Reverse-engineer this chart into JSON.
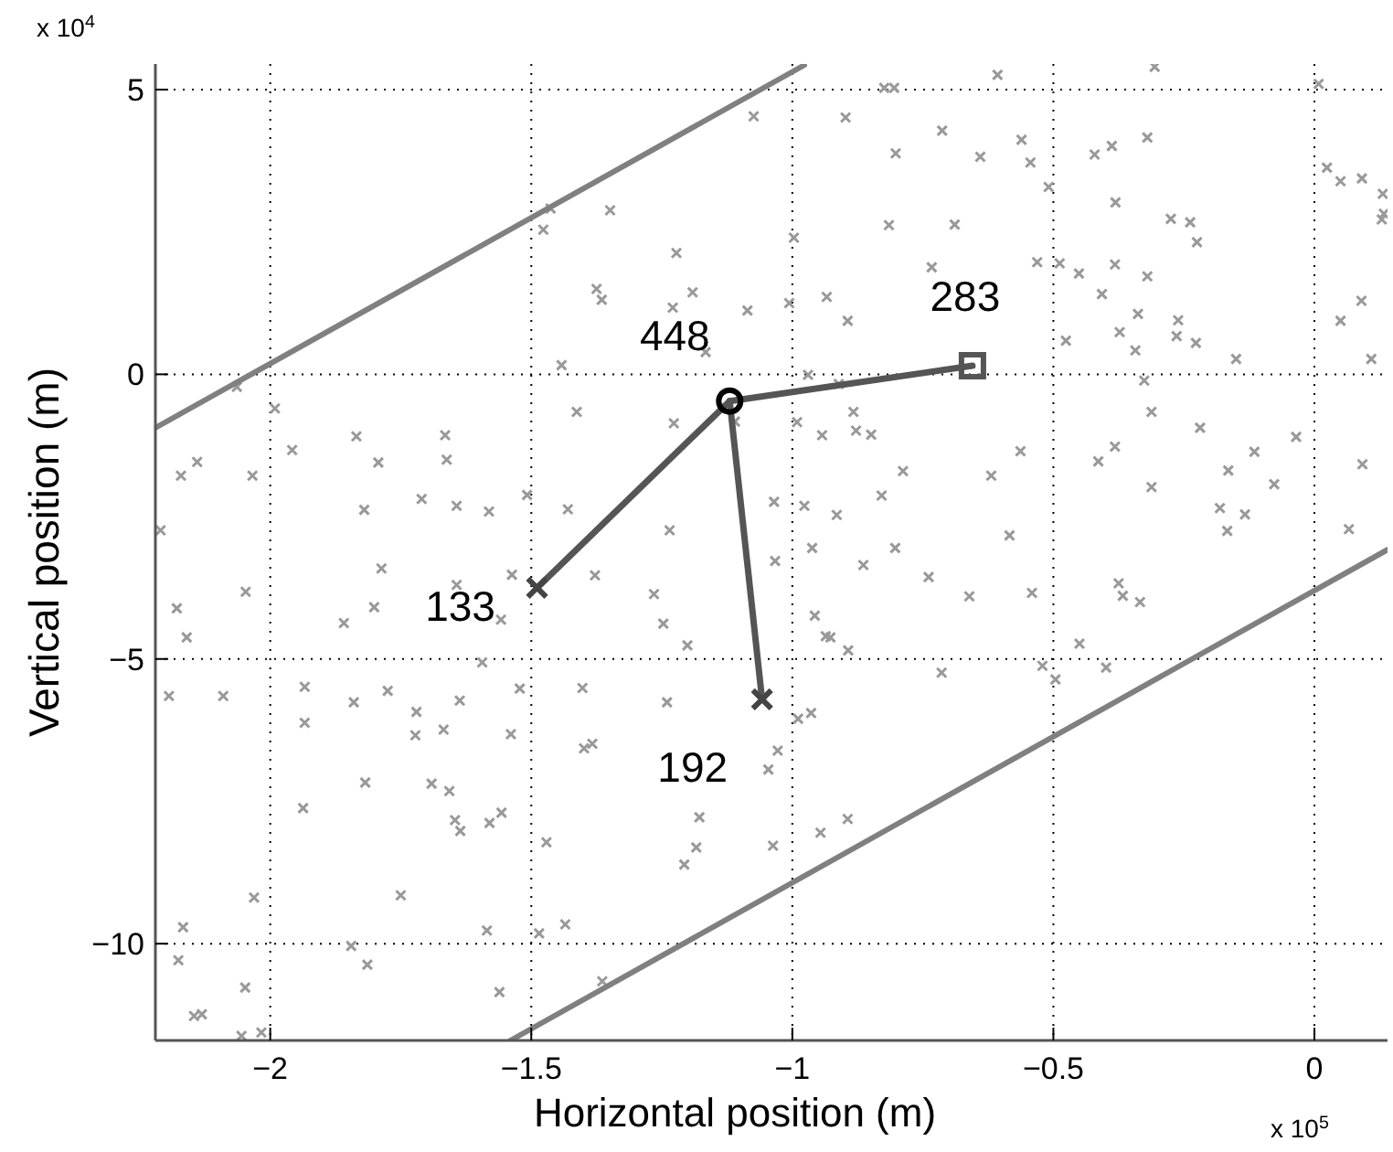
{
  "chart_data": {
    "type": "scatter",
    "xlabel": "Horizontal position (m)",
    "ylabel": "Vertical position (m)",
    "xlim": [
      -2.22,
      0.14
    ],
    "xticks": [
      -2,
      -1.5,
      -1,
      -0.5,
      0
    ],
    "ylim": [
      -11.7,
      5.45
    ],
    "yticks": [
      -10,
      -5,
      0,
      5
    ],
    "grid": true,
    "annotations": [
      {
        "text": "448",
        "x": -1.12,
        "y": -0.47
      },
      {
        "text": "283",
        "x": -0.655,
        "y": 0.15
      },
      {
        "text": "133",
        "x": -1.489,
        "y": -3.75
      },
      {
        "text": "192",
        "x": -1.058,
        "y": -5.71
      },
      "x 10$^{4}$",
      "x 10$^{5}$"
    ],
    "series": [
      {
        "color": "#999999",
        "marker": "cross",
        "x": [
          -1.477,
          -2.064,
          -1.991,
          -1.958,
          -2.171,
          -2.14,
          -2.034,
          -1.835,
          -1.793,
          -1.665,
          -1.662,
          -1.82,
          -1.71,
          -1.643,
          -1.581,
          -1.508,
          -2.21,
          -1.463,
          -1.349,
          -1.074,
          -1.222,
          -1.375,
          -1.365,
          -1.191,
          -1.229,
          -1.086,
          -1.166,
          -1.442,
          -1.413,
          -1.227,
          -1.11,
          -1.43,
          -1.235,
          -1.035,
          -0.997,
          -1.006,
          -0.898,
          -0.824,
          -0.805,
          -0.713,
          -0.802,
          -0.815,
          -0.689,
          -0.733,
          -0.934,
          -0.894,
          -0.97,
          -0.911,
          -0.991,
          -0.943,
          -0.883,
          -0.878,
          -0.849,
          -0.788,
          -0.977,
          -0.915,
          -0.829,
          -0.962,
          -0.803,
          -0.607,
          -0.64,
          -0.561,
          -0.544,
          -0.509,
          -0.531,
          -0.306,
          -0.421,
          -0.388,
          -0.32,
          -0.381,
          -0.275,
          -0.238,
          -0.225,
          -0.488,
          -0.451,
          -0.382,
          -0.32,
          -0.407,
          -0.338,
          -0.373,
          -0.343,
          -0.261,
          -0.264,
          -0.227,
          -0.15,
          -0.476,
          -0.326,
          -0.312,
          -0.219,
          -0.035,
          -0.115,
          -0.165,
          -0.077,
          -0.181,
          -0.133,
          -0.167,
          -0.414,
          -0.382,
          -0.312,
          -0.563,
          -0.619,
          -0.584,
          0.008,
          0.024,
          0.05,
          0.091,
          0.131,
          0.133,
          0.129,
          0.05,
          0.09,
          0.109,
          0.092,
          0.066,
          -1.787,
          -2.047,
          -2.179,
          -2.16,
          -1.859,
          -1.801,
          -1.643,
          -1.537,
          -1.558,
          -1.594,
          -2.194,
          -2.09,
          -1.934,
          -1.934,
          -1.84,
          -1.775,
          -1.72,
          -1.722,
          -1.668,
          -1.637,
          -1.522,
          -1.539,
          -1.818,
          -1.691,
          -1.657,
          -1.646,
          -1.636,
          -1.58,
          -1.557,
          -1.937,
          -1.471,
          -1.75,
          -2.031,
          -2.167,
          -2.176,
          -1.845,
          -1.814,
          -1.585,
          -1.485,
          -2.048,
          -1.561,
          -2.146,
          -2.131,
          -2.055,
          -2.017,
          -1.378,
          -1.265,
          -1.247,
          -1.201,
          -1.402,
          -1.24,
          -1.399,
          -1.383,
          -1.033,
          -0.864,
          -0.739,
          -0.957,
          -0.936,
          -0.927,
          -0.893,
          -0.714,
          -0.989,
          -0.964,
          -1.028,
          -1.046,
          -1.178,
          -1.184,
          -1.207,
          -1.037,
          -0.946,
          -0.894,
          -1.435,
          -1.364,
          -0.661,
          -0.541,
          -0.375,
          -0.367,
          -0.334,
          -0.45,
          -0.521,
          -0.496,
          -0.399
        ],
        "values": [
          2.54,
          -0.22,
          -0.6,
          -1.33,
          -1.78,
          -1.54,
          -1.78,
          -1.09,
          -1.55,
          -1.07,
          -1.5,
          -2.38,
          -2.19,
          -2.31,
          -2.41,
          -2.12,
          -2.74,
          2.91,
          2.88,
          4.53,
          2.13,
          1.5,
          1.31,
          1.44,
          1.17,
          1.12,
          0.39,
          0.16,
          -0.66,
          -0.86,
          -0.83,
          -2.37,
          -2.74,
          -2.24,
          2.4,
          1.25,
          4.51,
          5.03,
          5.03,
          4.28,
          3.88,
          2.62,
          2.63,
          1.88,
          1.36,
          0.94,
          -0.01,
          -0.17,
          -0.84,
          -1.07,
          -0.66,
          -0.99,
          -1.06,
          -1.7,
          -2.31,
          -2.47,
          -2.13,
          -3.05,
          -3.05,
          5.26,
          3.82,
          4.12,
          3.72,
          3.29,
          1.97,
          5.4,
          3.86,
          4.01,
          4.16,
          3.02,
          2.73,
          2.67,
          2.32,
          1.95,
          1.77,
          1.93,
          1.72,
          1.41,
          1.06,
          0.74,
          0.42,
          0.95,
          0.67,
          0.55,
          0.27,
          0.59,
          -0.11,
          -0.66,
          -0.94,
          -1.1,
          -1.36,
          -1.69,
          -1.93,
          -2.35,
          -2.46,
          -2.75,
          -1.53,
          -1.27,
          -1.98,
          -1.35,
          -1.78,
          -2.83,
          5.1,
          3.63,
          3.39,
          3.44,
          3.17,
          2.82,
          2.72,
          0.94,
          1.29,
          0.27,
          -1.58,
          -2.72,
          -3.41,
          -3.82,
          -4.11,
          -4.62,
          -4.37,
          -4.09,
          -3.7,
          -3.52,
          -4.31,
          -5.06,
          -5.65,
          -5.65,
          -5.49,
          -6.12,
          -5.76,
          -5.56,
          -5.93,
          -6.34,
          -6.24,
          -5.73,
          -5.52,
          -6.32,
          -7.17,
          -7.19,
          -7.32,
          -7.83,
          -8.02,
          -7.88,
          -7.7,
          -7.62,
          -8.22,
          -9.15,
          -9.19,
          -9.71,
          -10.29,
          -10.04,
          -10.37,
          -9.77,
          -9.82,
          -10.77,
          -10.85,
          -11.27,
          -11.24,
          -11.62,
          -11.56,
          -3.53,
          -3.86,
          -4.38,
          -4.76,
          -5.51,
          -5.76,
          -6.57,
          -6.49,
          -3.28,
          -3.35,
          -3.56,
          -4.24,
          -4.6,
          -4.62,
          -4.85,
          -5.24,
          -6.05,
          -5.95,
          -6.61,
          -6.94,
          -7.78,
          -8.31,
          -8.61,
          -8.28,
          -8.05,
          -7.81,
          -9.66,
          -10.66,
          -3.9,
          -3.84,
          -3.67,
          -3.89,
          -4.0,
          -4.73,
          -5.12,
          -5.36,
          -5.15
        ]
      },
      {
        "type": "line",
        "color": "#808080",
        "x": [
          -2.22,
          -0.977
        ],
        "values": [
          -0.94,
          5.43
        ]
      },
      {
        "type": "line",
        "color": "#808080",
        "x": [
          -1.54,
          0.14
        ],
        "values": [
          -11.7,
          -3.08
        ]
      },
      {
        "type": "line",
        "color": "#555555",
        "x": [
          -1.12,
          -1.489
        ],
        "values": [
          -0.47,
          -3.75
        ]
      },
      {
        "type": "line",
        "color": "#555555",
        "x": [
          -1.12,
          -1.058
        ],
        "values": [
          -0.47,
          -5.71
        ]
      },
      {
        "type": "line",
        "color": "#555555",
        "x": [
          -1.12,
          -0.655
        ],
        "values": [
          -0.47,
          0.15
        ]
      },
      {
        "color": "#000000",
        "marker": "circle",
        "x": [
          -1.12
        ],
        "values": [
          -0.47
        ]
      },
      {
        "color": "#555555",
        "marker": "square",
        "x": [
          -0.655
        ],
        "values": [
          0.15
        ]
      },
      {
        "color": "#444444",
        "marker": "cross",
        "x": [
          -1.489,
          -1.058
        ],
        "values": [
          -3.75,
          -5.71
        ]
      }
    ]
  }
}
